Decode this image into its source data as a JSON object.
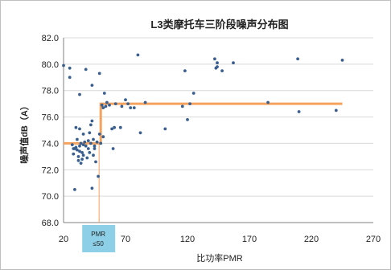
{
  "chart_data": {
    "type": "scatter",
    "title": "L3类摩托车三阶段噪声分布图",
    "xlabel": "比功率PMR",
    "ylabel": "噪声值dB（A）",
    "xlim": [
      20,
      270
    ],
    "ylim": [
      68,
      82
    ],
    "x_ticks": [
      "20",
      "70",
      "120",
      "170",
      "220",
      "270"
    ],
    "y_ticks": [
      "68.0",
      "70.0",
      "72.0",
      "74.0",
      "76.0",
      "78.0",
      "80.0",
      "82.0"
    ],
    "grid": "horizontal",
    "colors": {
      "points": "#3a5f8f",
      "step_line": "#f5a25c",
      "marker_box": "#8ccfe6",
      "grid": "#d9d9d9"
    },
    "annotation": {
      "line1": "PMR",
      "line2": "≤50",
      "x": 50
    },
    "series": [
      {
        "kind": "points",
        "points": [
          [
            20,
            79.9
          ],
          [
            25,
            79.0
          ],
          [
            25,
            79.7
          ],
          [
            27,
            73.9
          ],
          [
            28,
            73.2
          ],
          [
            28,
            73.6
          ],
          [
            29,
            73.6
          ],
          [
            29,
            70.5
          ],
          [
            30,
            75.2
          ],
          [
            30,
            73.7
          ],
          [
            31,
            73.5
          ],
          [
            31,
            74.3
          ],
          [
            32,
            73.0
          ],
          [
            32,
            72.7
          ],
          [
            33,
            77.7
          ],
          [
            33,
            73.8
          ],
          [
            33,
            73.4
          ],
          [
            33,
            75.1
          ],
          [
            34,
            74.0
          ],
          [
            34,
            72.5
          ],
          [
            35,
            73.3
          ],
          [
            35,
            72.8
          ],
          [
            36,
            73.9
          ],
          [
            36,
            74.7
          ],
          [
            36,
            73.1
          ],
          [
            37,
            74.1
          ],
          [
            38,
            73.8
          ],
          [
            38,
            79.6
          ],
          [
            39,
            72.9
          ],
          [
            40,
            74.2
          ],
          [
            40,
            73.6
          ],
          [
            41,
            74.8
          ],
          [
            41,
            73.3
          ],
          [
            42,
            75.4
          ],
          [
            42,
            74.0
          ],
          [
            43,
            75.7
          ],
          [
            43,
            78.4
          ],
          [
            43,
            70.6
          ],
          [
            44,
            73.1
          ],
          [
            44,
            74.3
          ],
          [
            45,
            73.8
          ],
          [
            45,
            73.6
          ],
          [
            46,
            72.6
          ],
          [
            47,
            74.1
          ],
          [
            48,
            71.5
          ],
          [
            49,
            74.7
          ],
          [
            49,
            79.3
          ],
          [
            50,
            74.0
          ],
          [
            51,
            76.9
          ],
          [
            52,
            76.7
          ],
          [
            52,
            74.5
          ],
          [
            53,
            77.8
          ],
          [
            54,
            76.8
          ],
          [
            55,
            77.1
          ],
          [
            57,
            76.9
          ],
          [
            59,
            75.1
          ],
          [
            60,
            73.6
          ],
          [
            61,
            75.2
          ],
          [
            62,
            77.0
          ],
          [
            66,
            75.2
          ],
          [
            67,
            76.8
          ],
          [
            70,
            77.3
          ],
          [
            72,
            77.0
          ],
          [
            74,
            76.7
          ],
          [
            77,
            76.7
          ],
          [
            80,
            80.7
          ],
          [
            82,
            74.8
          ],
          [
            86,
            77.1
          ],
          [
            102,
            75.1
          ],
          [
            116,
            76.8
          ],
          [
            118,
            79.5
          ],
          [
            120,
            75.8
          ],
          [
            122,
            77.0
          ],
          [
            125,
            77.8
          ],
          [
            142,
            80.4
          ],
          [
            143,
            79.7
          ],
          [
            144,
            80.1
          ],
          [
            144,
            79.8
          ],
          [
            148,
            79.5
          ],
          [
            157,
            80.1
          ],
          [
            185,
            77.1
          ],
          [
            209,
            80.4
          ],
          [
            210,
            76.4
          ],
          [
            240,
            76.5
          ],
          [
            245,
            80.3
          ]
        ]
      },
      {
        "kind": "step_line",
        "points": [
          [
            20,
            74.0
          ],
          [
            50,
            74.0
          ],
          [
            50,
            77.0
          ],
          [
            245,
            77.0
          ]
        ]
      }
    ]
  }
}
